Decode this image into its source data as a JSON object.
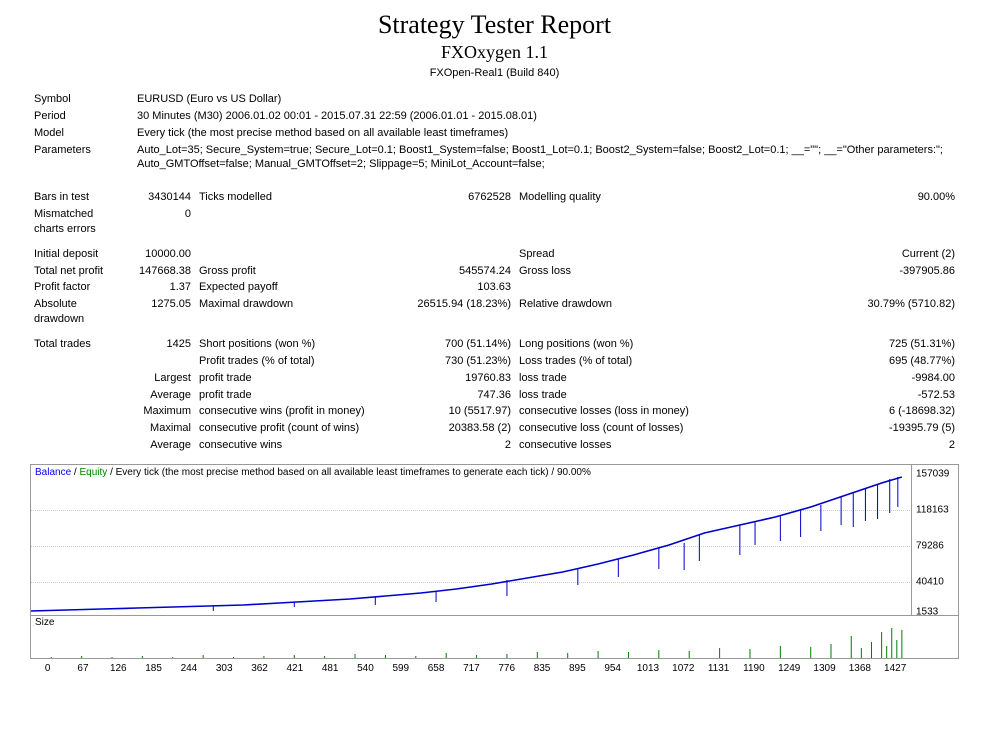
{
  "header": {
    "title": "Strategy Tester Report",
    "subtitle": "FXOxygen 1.1",
    "build": "FXOpen-Real1 (Build 840)"
  },
  "info": {
    "symbol_label": "Symbol",
    "symbol": "EURUSD (Euro vs US Dollar)",
    "period_label": "Period",
    "period": "30 Minutes (M30) 2006.01.02 00:01 - 2015.07.31 22:59 (2006.01.01 - 2015.08.01)",
    "model_label": "Model",
    "model": "Every tick (the most precise method based on all available least timeframes)",
    "parameters_label": "Parameters",
    "parameters": "Auto_Lot=35; Secure_System=true; Secure_Lot=0.1; Boost1_System=false; Boost1_Lot=0.1; Boost2_System=false; Boost2_Lot=0.1; __=\"\"; __=\"Other parameters:\"; Auto_GMTOffset=false; Manual_GMTOffset=2; Slippage=5; MiniLot_Account=false;"
  },
  "stats": {
    "bars_in_test_label": "Bars in test",
    "bars_in_test": "3430144",
    "ticks_modelled_label": "Ticks modelled",
    "ticks_modelled": "6762528",
    "modelling_quality_label": "Modelling quality",
    "modelling_quality": "90.00%",
    "mismatched_label": "Mismatched charts errors",
    "mismatched": "0",
    "initial_deposit_label": "Initial deposit",
    "initial_deposit": "10000.00",
    "spread_label": "Spread",
    "spread": "Current (2)",
    "total_net_profit_label": "Total net profit",
    "total_net_profit": "147668.38",
    "gross_profit_label": "Gross profit",
    "gross_profit": "545574.24",
    "gross_loss_label": "Gross loss",
    "gross_loss": "-397905.86",
    "profit_factor_label": "Profit factor",
    "profit_factor": "1.37",
    "expected_payoff_label": "Expected payoff",
    "expected_payoff": "103.63",
    "absolute_dd_label": "Absolute drawdown",
    "absolute_dd": "1275.05",
    "maximal_dd_label": "Maximal drawdown",
    "maximal_dd": "26515.94 (18.23%)",
    "relative_dd_label": "Relative drawdown",
    "relative_dd": "30.79% (5710.82)",
    "total_trades_label": "Total trades",
    "total_trades": "1425",
    "short_pos_label": "Short positions (won %)",
    "short_pos": "700 (51.14%)",
    "long_pos_label": "Long positions (won %)",
    "long_pos": "725 (51.31%)",
    "profit_trades_label": "Profit trades (% of total)",
    "profit_trades": "730 (51.23%)",
    "loss_trades_label": "Loss trades (% of total)",
    "loss_trades": "695 (48.77%)",
    "largest_label": "Largest",
    "largest_profit_label": "profit trade",
    "largest_profit": "19760.83",
    "largest_loss_label": "loss trade",
    "largest_loss": "-9984.00",
    "average_label": "Average",
    "avg_profit_label": "profit trade",
    "avg_profit": "747.36",
    "avg_loss_label": "loss trade",
    "avg_loss": "-572.53",
    "maximum_label": "Maximum",
    "max_cons_wins_label": "consecutive wins (profit in money)",
    "max_cons_wins": "10 (5517.97)",
    "max_cons_losses_label": "consecutive losses (loss in money)",
    "max_cons_losses": "6 (-18698.32)",
    "maximal_label": "Maximal",
    "max_cons_profit_label": "consecutive profit (count of wins)",
    "max_cons_profit": "20383.58 (2)",
    "max_cons_loss_label": "consecutive loss (count of losses)",
    "max_cons_loss": "-19395.79 (5)",
    "avg_cons_label": "Average",
    "avg_cons_wins_label": "consecutive wins",
    "avg_cons_wins": "2",
    "avg_cons_losses_label": "consecutive losses",
    "avg_cons_losses": "2"
  },
  "chart": {
    "legend_balance": "Balance",
    "legend_equity": "Equity",
    "legend_tail": "/ Every tick (the most precise method based on all available least timeframes to generate each tick) / 90.00%",
    "size_label": "Size",
    "y_labels": [
      "157039",
      "118163",
      "79286",
      "40410",
      "1533"
    ],
    "y_positions_pct": [
      6,
      30,
      54,
      78,
      98
    ],
    "grid_positions_pct": [
      30,
      54,
      78
    ],
    "x_labels": [
      "0",
      "67",
      "126",
      "185",
      "244",
      "303",
      "362",
      "421",
      "481",
      "540",
      "599",
      "658",
      "717",
      "776",
      "835",
      "895",
      "954",
      "1013",
      "1072",
      "1131",
      "1190",
      "1249",
      "1309",
      "1368",
      "1427"
    ],
    "curve": {
      "color": "#0000cc",
      "width": 1.6,
      "points": [
        [
          0,
          146
        ],
        [
          35,
          145
        ],
        [
          70,
          144
        ],
        [
          105,
          143
        ],
        [
          140,
          142
        ],
        [
          175,
          141
        ],
        [
          210,
          140
        ],
        [
          245,
          138
        ],
        [
          280,
          136
        ],
        [
          315,
          134
        ],
        [
          350,
          131
        ],
        [
          385,
          128
        ],
        [
          420,
          124
        ],
        [
          455,
          119
        ],
        [
          490,
          113
        ],
        [
          525,
          107
        ],
        [
          560,
          99
        ],
        [
          595,
          90
        ],
        [
          630,
          80
        ],
        [
          665,
          68
        ],
        [
          700,
          60
        ],
        [
          735,
          52
        ],
        [
          770,
          42
        ],
        [
          805,
          30
        ],
        [
          840,
          18
        ],
        [
          860,
          12
        ]
      ],
      "drawdowns": [
        [
          180,
          141,
          146
        ],
        [
          260,
          137,
          142
        ],
        [
          340,
          132,
          140
        ],
        [
          400,
          126,
          137
        ],
        [
          470,
          115,
          131
        ],
        [
          540,
          104,
          120
        ],
        [
          580,
          94,
          112
        ],
        [
          620,
          83,
          104
        ],
        [
          645,
          78,
          105
        ],
        [
          660,
          70,
          96
        ],
        [
          700,
          60,
          90
        ],
        [
          715,
          56,
          80
        ],
        [
          740,
          50,
          76
        ],
        [
          760,
          44,
          72
        ],
        [
          780,
          40,
          66
        ],
        [
          800,
          32,
          60
        ],
        [
          812,
          28,
          62
        ],
        [
          824,
          24,
          56
        ],
        [
          836,
          20,
          54
        ],
        [
          848,
          14,
          48
        ],
        [
          856,
          12,
          42
        ]
      ]
    },
    "size_bars": {
      "color": "#008000",
      "bars": [
        [
          20,
          1
        ],
        [
          50,
          2
        ],
        [
          80,
          1
        ],
        [
          110,
          2
        ],
        [
          140,
          1
        ],
        [
          170,
          3
        ],
        [
          200,
          1
        ],
        [
          230,
          2
        ],
        [
          260,
          3
        ],
        [
          290,
          2
        ],
        [
          320,
          4
        ],
        [
          350,
          3
        ],
        [
          380,
          2
        ],
        [
          410,
          5
        ],
        [
          440,
          3
        ],
        [
          470,
          4
        ],
        [
          500,
          6
        ],
        [
          530,
          5
        ],
        [
          560,
          7
        ],
        [
          590,
          6
        ],
        [
          620,
          8
        ],
        [
          650,
          7
        ],
        [
          680,
          10
        ],
        [
          710,
          9
        ],
        [
          740,
          12
        ],
        [
          770,
          11
        ],
        [
          790,
          14
        ],
        [
          810,
          22
        ],
        [
          820,
          10
        ],
        [
          830,
          16
        ],
        [
          840,
          26
        ],
        [
          845,
          12
        ],
        [
          850,
          30
        ],
        [
          855,
          18
        ],
        [
          860,
          28
        ]
      ]
    }
  }
}
